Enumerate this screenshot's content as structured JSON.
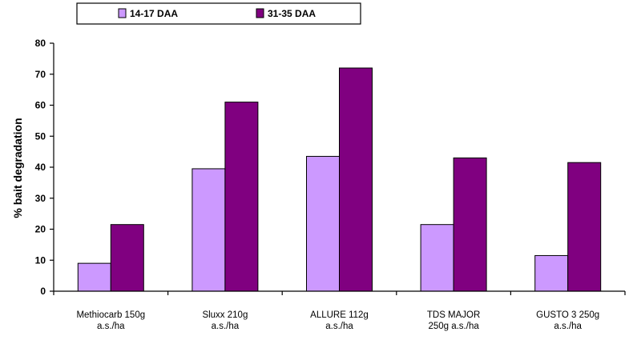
{
  "chart_data": {
    "type": "bar",
    "categories": [
      [
        "Methiocarb 150g",
        "a.s./ha"
      ],
      [
        "Sluxx 210g",
        "a.s./ha"
      ],
      [
        "ALLURE 112g",
        "a.s./ha"
      ],
      [
        "TDS MAJOR",
        "250g a.s./ha"
      ],
      [
        "GUSTO 3 250g",
        "a.s./ha"
      ]
    ],
    "series": [
      {
        "name": "14-17 DAA",
        "color": "#cc99ff",
        "values": [
          9,
          39.5,
          43.5,
          21.5,
          11.5
        ]
      },
      {
        "name": "31-35 DAA",
        "color": "#800080",
        "values": [
          21.5,
          61,
          72,
          43,
          41.5
        ]
      }
    ],
    "title": "",
    "xlabel": "",
    "ylabel": "% bait degradation",
    "ylim": [
      0,
      80
    ],
    "yticks": [
      0,
      10,
      20,
      30,
      40,
      50,
      60,
      70,
      80
    ],
    "grid": false,
    "legend_position": "top"
  }
}
